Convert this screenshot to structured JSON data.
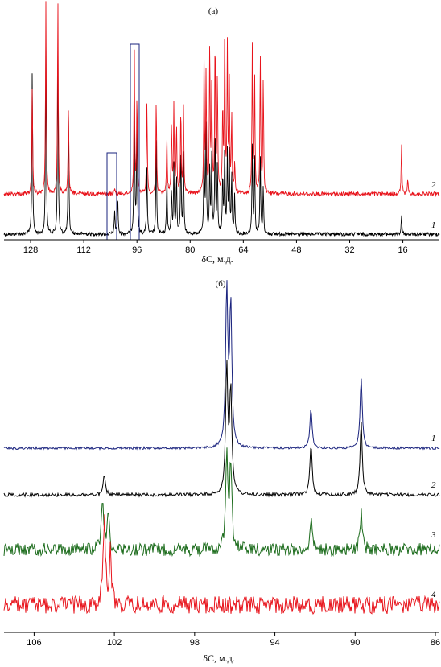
{
  "chart_data": [
    {
      "panel": "a",
      "type": "line",
      "title": "(а)",
      "xlabel": "δC, м.д.",
      "x_reversed": true,
      "xlim": [
        136,
        5
      ],
      "xticks": [
        128,
        112,
        96,
        80,
        64,
        48,
        32,
        16
      ],
      "series": [
        {
          "name": "1",
          "color": "#000000",
          "peaks": [
            [
              127.5,
              0.85
            ],
            [
              123.4,
              1.0
            ],
            [
              119.8,
              1.0
            ],
            [
              116.6,
              0.65
            ],
            [
              102.7,
              0.12
            ],
            [
              101.8,
              0.2
            ],
            [
              96.8,
              0.8
            ],
            [
              96.0,
              0.6
            ],
            [
              93.0,
              0.35
            ],
            [
              90.2,
              0.5
            ],
            [
              87.0,
              0.3
            ],
            [
              85.6,
              0.22
            ],
            [
              84.9,
              0.35
            ],
            [
              84.1,
              0.3
            ],
            [
              82.8,
              0.45
            ],
            [
              82.0,
              0.4
            ],
            [
              75.8,
              0.5
            ],
            [
              75.2,
              0.55
            ],
            [
              74.1,
              0.35
            ],
            [
              73.5,
              0.4
            ],
            [
              72.5,
              0.55
            ],
            [
              71.8,
              0.35
            ],
            [
              70.2,
              0.3
            ],
            [
              69.6,
              0.45
            ],
            [
              68.8,
              0.42
            ],
            [
              68.2,
              0.4
            ],
            [
              67.5,
              0.3
            ],
            [
              66.6,
              0.2
            ],
            [
              61.3,
              0.45
            ],
            [
              60.6,
              0.4
            ],
            [
              58.9,
              0.4
            ],
            [
              58.0,
              0.25
            ],
            [
              16.4,
              0.1
            ]
          ]
        },
        {
          "name": "2",
          "color": "#e8141c",
          "peaks": [
            [
              127.5,
              0.55
            ],
            [
              123.4,
              1.0
            ],
            [
              119.8,
              1.0
            ],
            [
              116.6,
              0.45
            ],
            [
              102.7,
              0.03
            ],
            [
              96.8,
              0.75
            ],
            [
              96.0,
              0.5
            ],
            [
              93.0,
              0.48
            ],
            [
              90.2,
              0.48
            ],
            [
              87.0,
              0.3
            ],
            [
              85.6,
              0.35
            ],
            [
              84.9,
              0.45
            ],
            [
              84.1,
              0.35
            ],
            [
              82.8,
              0.42
            ],
            [
              82.0,
              0.45
            ],
            [
              75.8,
              0.7
            ],
            [
              75.2,
              0.6
            ],
            [
              74.1,
              0.75
            ],
            [
              73.5,
              0.55
            ],
            [
              72.5,
              0.8
            ],
            [
              71.8,
              0.6
            ],
            [
              70.2,
              0.45
            ],
            [
              69.6,
              0.85
            ],
            [
              68.8,
              0.75
            ],
            [
              68.2,
              0.55
            ],
            [
              67.5,
              0.4
            ],
            [
              66.6,
              0.15
            ],
            [
              61.3,
              0.75
            ],
            [
              60.6,
              0.6
            ],
            [
              58.9,
              0.7
            ],
            [
              58.0,
              0.6
            ],
            [
              16.4,
              0.25
            ],
            [
              14.5,
              0.08
            ]
          ]
        }
      ],
      "annotations": [
        "1",
        "2"
      ]
    },
    {
      "panel": "b",
      "type": "line",
      "title": "(б)",
      "xlabel": "δC, м.д.",
      "x_reversed": true,
      "xlim": [
        107.5,
        85.8
      ],
      "xticks": [
        106,
        102,
        98,
        94,
        90,
        86
      ],
      "series": [
        {
          "name": "1",
          "color": "#1a237e",
          "peaks": [
            [
              96.4,
              1.0
            ],
            [
              96.2,
              0.9
            ],
            [
              92.2,
              0.25
            ],
            [
              89.7,
              0.45
            ]
          ]
        },
        {
          "name": "2",
          "color": "#000000",
          "peaks": [
            [
              102.5,
              0.12
            ],
            [
              96.4,
              0.8
            ],
            [
              96.2,
              0.65
            ],
            [
              92.2,
              0.32
            ],
            [
              89.7,
              0.45
            ]
          ]
        },
        {
          "name": "3",
          "color": "#1b6b1b",
          "peaks": [
            [
              102.6,
              0.5
            ],
            [
              102.3,
              0.35
            ],
            [
              96.4,
              0.9
            ],
            [
              96.2,
              0.85
            ],
            [
              92.2,
              0.3
            ],
            [
              89.7,
              0.35
            ]
          ]
        },
        {
          "name": "4",
          "color": "#e8141c",
          "peaks": [
            [
              102.5,
              0.95
            ],
            [
              102.2,
              0.55
            ]
          ]
        }
      ],
      "annotations": [
        "1",
        "2",
        "3",
        "4"
      ]
    }
  ]
}
